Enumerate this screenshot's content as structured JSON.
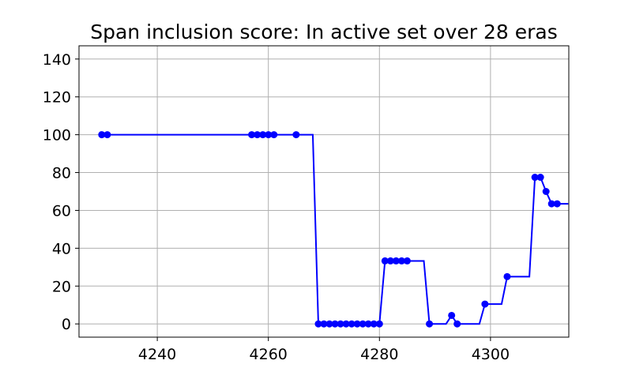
{
  "chart_data": {
    "type": "line",
    "title": "Span inclusion score: In active set over 28 eras",
    "xlabel": "",
    "ylabel": "",
    "xlim": [
      4225.9,
      4314.1
    ],
    "ylim": [
      -7,
      147
    ],
    "xticks": [
      4240,
      4260,
      4280,
      4300
    ],
    "yticks": [
      0,
      20,
      40,
      60,
      80,
      100,
      120,
      140
    ],
    "grid": true,
    "line_color": "#0000ff",
    "marker_color": "#0000ff",
    "series": [
      {
        "line": [
          [
            4230,
            100
          ],
          [
            4231,
            100
          ],
          [
            4257,
            100
          ],
          [
            4258,
            100
          ],
          [
            4259,
            100
          ],
          [
            4260,
            100
          ],
          [
            4261,
            100
          ],
          [
            4265,
            100
          ],
          [
            4268,
            100
          ],
          [
            4269,
            0
          ],
          [
            4270,
            0
          ],
          [
            4271,
            0
          ],
          [
            4272,
            0
          ],
          [
            4273,
            0
          ],
          [
            4274,
            0
          ],
          [
            4275,
            0
          ],
          [
            4276,
            0
          ],
          [
            4277,
            0
          ],
          [
            4278,
            0
          ],
          [
            4279,
            0
          ],
          [
            4280,
            0
          ],
          [
            4281,
            33.3
          ],
          [
            4282,
            33.3
          ],
          [
            4283,
            33.3
          ],
          [
            4284,
            33.3
          ],
          [
            4285,
            33.3
          ],
          [
            4288,
            33.3
          ],
          [
            4289,
            0
          ],
          [
            4292,
            0
          ],
          [
            4293,
            4.5
          ],
          [
            4294,
            0
          ],
          [
            4298,
            0
          ],
          [
            4299,
            10.5
          ],
          [
            4302,
            10.5
          ],
          [
            4303,
            25
          ],
          [
            4307,
            25
          ],
          [
            4308,
            77.5
          ],
          [
            4309,
            77.5
          ],
          [
            4310,
            70
          ],
          [
            4311,
            63.5
          ],
          [
            4312,
            63.5
          ],
          [
            4314,
            63.5
          ]
        ],
        "markers": [
          [
            4230,
            100
          ],
          [
            4231,
            100
          ],
          [
            4257,
            100
          ],
          [
            4258,
            100
          ],
          [
            4259,
            100
          ],
          [
            4260,
            100
          ],
          [
            4261,
            100
          ],
          [
            4265,
            100
          ],
          [
            4269,
            0
          ],
          [
            4270,
            0
          ],
          [
            4271,
            0
          ],
          [
            4272,
            0
          ],
          [
            4273,
            0
          ],
          [
            4274,
            0
          ],
          [
            4275,
            0
          ],
          [
            4276,
            0
          ],
          [
            4277,
            0
          ],
          [
            4278,
            0
          ],
          [
            4279,
            0
          ],
          [
            4280,
            0
          ],
          [
            4281,
            33.3
          ],
          [
            4282,
            33.3
          ],
          [
            4283,
            33.3
          ],
          [
            4284,
            33.3
          ],
          [
            4285,
            33.3
          ],
          [
            4289,
            0
          ],
          [
            4293,
            4.5
          ],
          [
            4294,
            0
          ],
          [
            4299,
            10.5
          ],
          [
            4303,
            25
          ],
          [
            4308,
            77.5
          ],
          [
            4309,
            77.5
          ],
          [
            4310,
            70
          ],
          [
            4311,
            63.5
          ],
          [
            4312,
            63.5
          ]
        ]
      }
    ]
  }
}
